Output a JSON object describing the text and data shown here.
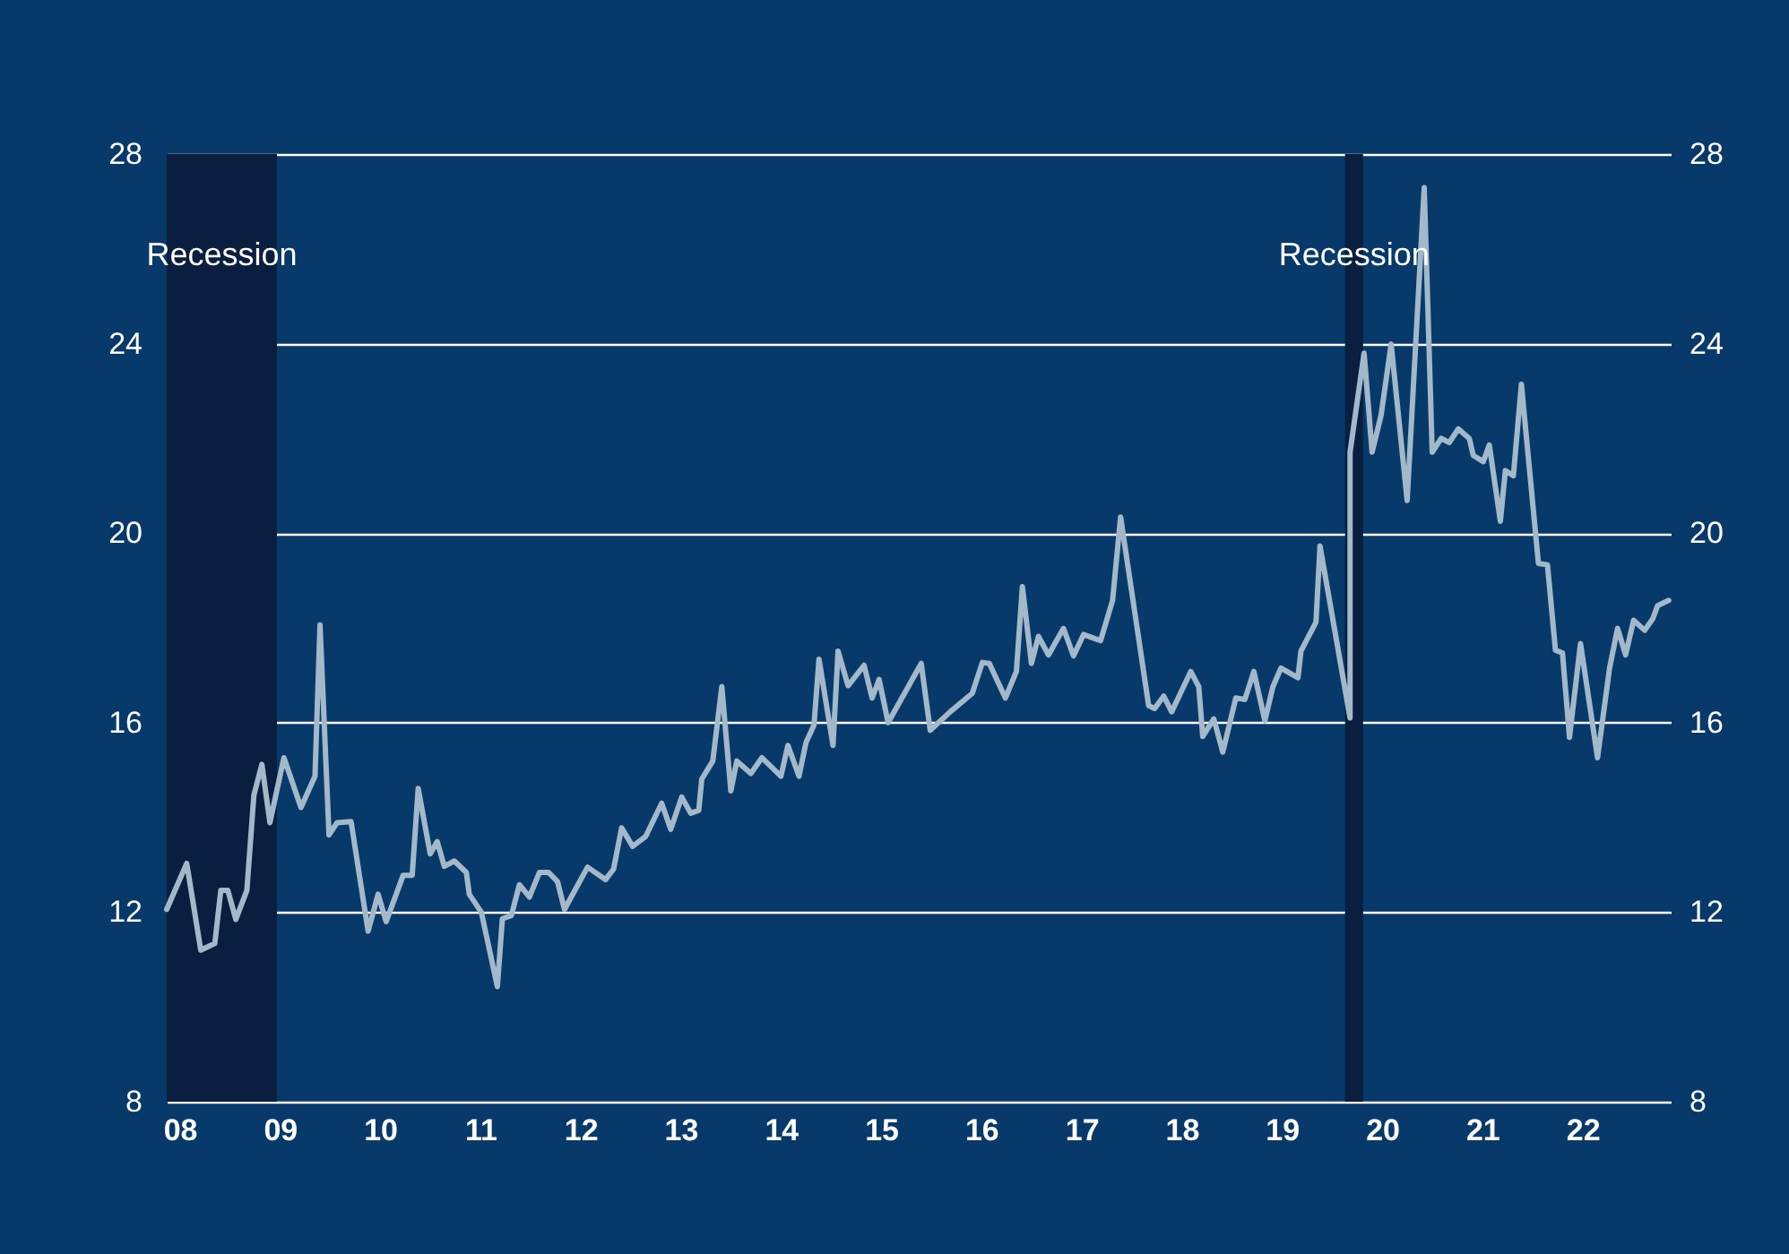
{
  "chart_data": {
    "type": "line",
    "x": [
      2007.87,
      2008.07,
      2008.21,
      2008.35,
      2008.41,
      2008.48,
      2008.56,
      2008.67,
      2008.74,
      2008.82,
      2008.9,
      2009.04,
      2009.21,
      2009.35,
      2009.4,
      2009.49,
      2009.57,
      2009.71,
      2009.88,
      2009.98,
      2010.06,
      2010.23,
      2010.32,
      2010.38,
      2010.5,
      2010.57,
      2010.64,
      2010.74,
      2010.86,
      2010.89,
      2011.01,
      2011.17,
      2011.22,
      2011.31,
      2011.39,
      2011.49,
      2011.59,
      2011.68,
      2011.77,
      2011.84,
      2012.07,
      2012.25,
      2012.33,
      2012.41,
      2012.52,
      2012.65,
      2012.81,
      2012.9,
      2013.01,
      2013.1,
      2013.18,
      2013.21,
      2013.32,
      2013.41,
      2013.5,
      2013.56,
      2013.7,
      2013.81,
      2014.0,
      2014.07,
      2014.18,
      2014.25,
      2014.33,
      2014.38,
      2014.52,
      2014.57,
      2014.67,
      2014.83,
      2014.91,
      2014.98,
      2015.07,
      2015.4,
      2015.49,
      2015.69,
      2015.91,
      2016.01,
      2016.08,
      2016.24,
      2016.35,
      2016.41,
      2016.5,
      2016.57,
      2016.67,
      2016.82,
      2016.92,
      2017.02,
      2017.19,
      2017.31,
      2017.39,
      2017.67,
      2017.73,
      2017.82,
      2017.9,
      2018.09,
      2018.17,
      2018.21,
      2018.32,
      2018.41,
      2018.54,
      2018.63,
      2018.72,
      2018.83,
      2018.91,
      2018.99,
      2019.16,
      2019.19,
      2019.34,
      2019.38,
      2019.68,
      2019.68,
      2019.82,
      2019.9,
      2019.99,
      2020.09,
      2020.25,
      2020.42,
      2020.5,
      2020.59,
      2020.67,
      2020.76,
      2020.87,
      2020.91,
      2021.01,
      2021.07,
      2021.18,
      2021.23,
      2021.31,
      2021.39,
      2021.56,
      2021.65,
      2021.73,
      2021.8,
      2021.87,
      2021.98,
      2022.15,
      2022.27,
      2022.35,
      2022.43,
      2022.51,
      2022.62,
      2022.7,
      2022.75,
      2022.86
    ],
    "series": [
      {
        "color": "#a3b8c9",
        "values": [
          12.06,
          13.03,
          11.2,
          11.34,
          12.46,
          12.46,
          11.85,
          12.46,
          14.47,
          15.12,
          13.89,
          15.26,
          14.21,
          14.87,
          18.06,
          13.63,
          13.89,
          13.91,
          11.6,
          12.38,
          11.8,
          12.78,
          12.78,
          14.61,
          13.23,
          13.49,
          12.97,
          13.08,
          12.84,
          12.38,
          12.0,
          10.43,
          11.86,
          11.93,
          12.58,
          12.32,
          12.84,
          12.84,
          12.65,
          12.06,
          12.95,
          12.69,
          12.91,
          13.78,
          13.39,
          13.6,
          14.3,
          13.75,
          14.43,
          14.09,
          14.15,
          14.81,
          15.19,
          16.76,
          14.56,
          15.19,
          14.93,
          15.26,
          14.87,
          15.52,
          14.87,
          15.58,
          15.95,
          17.34,
          15.52,
          17.51,
          16.78,
          17.21,
          16.52,
          16.91,
          16.0,
          17.25,
          15.84,
          16.23,
          16.62,
          17.27,
          17.25,
          16.52,
          17.08,
          18.87,
          17.25,
          17.82,
          17.43,
          17.99,
          17.41,
          17.86,
          17.73,
          18.58,
          20.34,
          16.36,
          16.3,
          16.56,
          16.23,
          17.08,
          16.76,
          15.71,
          16.08,
          15.38,
          16.52,
          16.49,
          17.08,
          16.04,
          16.76,
          17.15,
          16.95,
          17.51,
          18.12,
          19.73,
          16.1,
          21.71,
          23.8,
          21.71,
          22.49,
          23.99,
          20.69,
          27.29,
          21.71,
          22.0,
          21.91,
          22.2,
          22.0,
          21.64,
          21.51,
          21.86,
          20.25,
          21.32,
          21.21,
          23.14,
          19.36,
          19.33,
          17.53,
          17.47,
          15.69,
          17.67,
          15.26,
          17.15,
          17.99,
          17.43,
          18.16,
          17.95,
          18.19,
          18.47,
          18.58
        ]
      }
    ],
    "xlim": [
      2007.87,
      2022.88
    ],
    "xticks": [
      {
        "value": 2008,
        "label": "08"
      },
      {
        "value": 2009,
        "label": "09"
      },
      {
        "value": 2010,
        "label": "10"
      },
      {
        "value": 2011,
        "label": "11"
      },
      {
        "value": 2012,
        "label": "12"
      },
      {
        "value": 2013,
        "label": "13"
      },
      {
        "value": 2014,
        "label": "14"
      },
      {
        "value": 2015,
        "label": "15"
      },
      {
        "value": 2016,
        "label": "16"
      },
      {
        "value": 2017,
        "label": "17"
      },
      {
        "value": 2018,
        "label": "18"
      },
      {
        "value": 2019,
        "label": "19"
      },
      {
        "value": 2020,
        "label": "20"
      },
      {
        "value": 2021,
        "label": "21"
      },
      {
        "value": 2022,
        "label": "22"
      }
    ],
    "ylim": [
      8,
      28
    ],
    "yticks": [
      8,
      12,
      16,
      20,
      24,
      28
    ],
    "y2lim": [
      8,
      28
    ],
    "y2ticks": [
      8,
      12,
      16,
      20,
      24,
      28
    ],
    "bands": [
      {
        "axis": "x",
        "from": 2007.87,
        "to": 2008.97,
        "label": "Recession",
        "color": "#0a1f40"
      },
      {
        "axis": "x",
        "from": 2019.63,
        "to": 2019.81,
        "label": "Recession",
        "color": "#0a1f40"
      }
    ],
    "grid": "y",
    "marker": "none",
    "line_style": "solid"
  }
}
